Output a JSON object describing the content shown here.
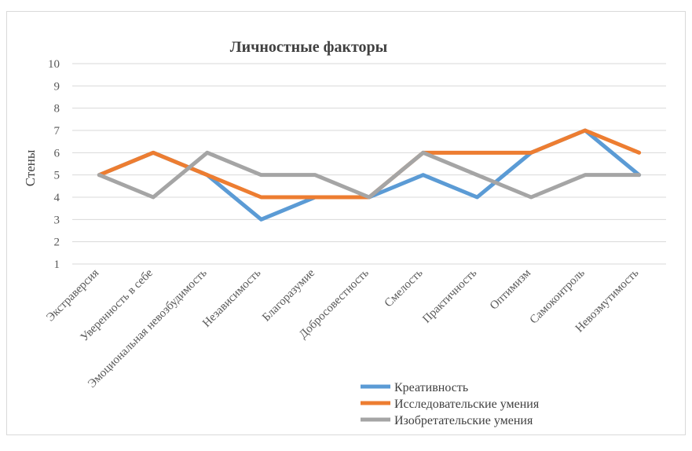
{
  "chart_data": {
    "type": "line",
    "title": "Личностные факторы",
    "ylabel": "Стены",
    "xlabel": "",
    "ylim": [
      1,
      10
    ],
    "yticks": [
      1,
      2,
      3,
      4,
      5,
      6,
      7,
      8,
      9,
      10
    ],
    "grid": true,
    "legend_position": "bottom-right",
    "categories": [
      "Экстраверсия",
      "Уверенность в себе",
      "Эмоциональная невозбудимость",
      "Независимость",
      "Благоразумие",
      "Добросовестность",
      "Смелость",
      "Практичность",
      "Оптимизм",
      "Самоконтроль",
      "Невозмутимость"
    ],
    "series": [
      {
        "name": "Креативность",
        "color": "#5b9bd5",
        "values": [
          5,
          6,
          5,
          3,
          4,
          4,
          5,
          4,
          6,
          7,
          5
        ]
      },
      {
        "name": "Исследовательские умения",
        "color": "#ed7d31",
        "values": [
          5,
          6,
          5,
          4,
          4,
          4,
          6,
          6,
          6,
          7,
          6
        ]
      },
      {
        "name": "Изобретательские умения",
        "color": "#a5a5a5",
        "values": [
          5,
          4,
          6,
          5,
          5,
          4,
          6,
          5,
          4,
          5,
          5
        ]
      }
    ]
  }
}
